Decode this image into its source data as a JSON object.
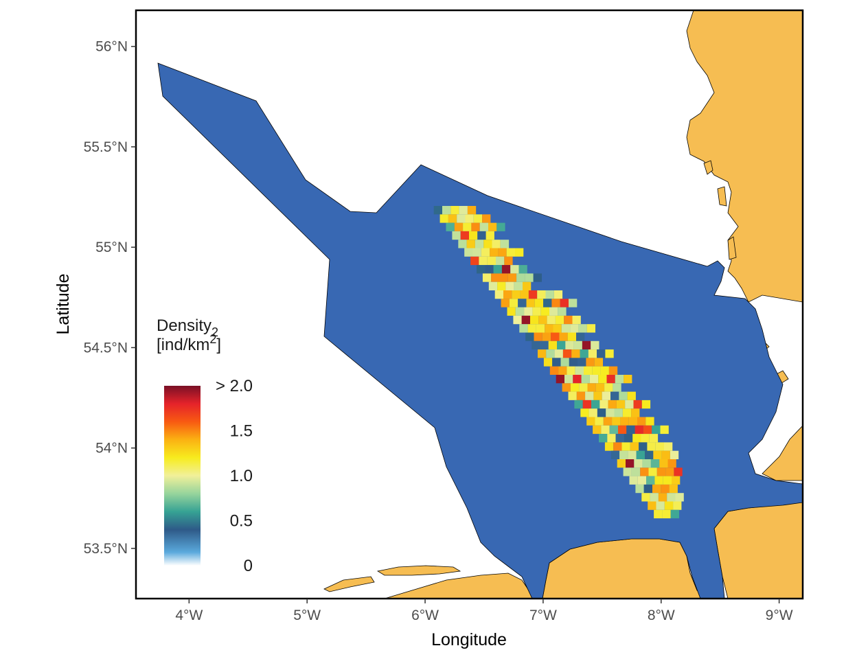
{
  "colors": {
    "sea_area": "#3868b3",
    "land": "#f6bd52",
    "background": "#ffffff",
    "frame": "#000000"
  },
  "axes": {
    "x_title": "Longitude",
    "y_title": "Latitude",
    "x_ticks": [
      {
        "value": 4,
        "label": "4°W"
      },
      {
        "value": 5,
        "label": "5°W"
      },
      {
        "value": 6,
        "label": "6°W"
      },
      {
        "value": 7,
        "label": "7°W"
      },
      {
        "value": 8,
        "label": "8°W"
      },
      {
        "value": 9,
        "label": "9°W"
      }
    ],
    "y_ticks": [
      {
        "value": 56.0,
        "label": "56°N"
      },
      {
        "value": 55.5,
        "label": "55.5°N"
      },
      {
        "value": 55.0,
        "label": "55°N"
      },
      {
        "value": 54.5,
        "label": "54.5°N"
      },
      {
        "value": 54.0,
        "label": "54°N"
      },
      {
        "value": 53.5,
        "label": "53.5°N"
      }
    ],
    "x_range": [
      3.55,
      9.2
    ],
    "y_range": [
      53.25,
      56.18
    ]
  },
  "legend": {
    "title_line1": "Density",
    "title_sub": "2",
    "title_line2": "[ind/km",
    "title_sup": "2",
    "title_end": "]",
    "placement": "bottom-left inside",
    "labels": [
      {
        "value": 2.0,
        "label": "> 2.0"
      },
      {
        "value": 1.5,
        "label": "1.5"
      },
      {
        "value": 1.0,
        "label": "1.0"
      },
      {
        "value": 0.5,
        "label": "0.5"
      },
      {
        "value": 0.0,
        "label": "0"
      }
    ],
    "gradient_stops": [
      {
        "value": 0.0,
        "color": "#ffffff"
      },
      {
        "value": 0.15,
        "color": "#5aa9dc"
      },
      {
        "value": 0.4,
        "color": "#2e5a88"
      },
      {
        "value": 0.6,
        "color": "#36a294"
      },
      {
        "value": 0.8,
        "color": "#96d49c"
      },
      {
        "value": 1.0,
        "color": "#f1f09a"
      },
      {
        "value": 1.2,
        "color": "#f7ec1e"
      },
      {
        "value": 1.4,
        "color": "#fbb212"
      },
      {
        "value": 1.6,
        "color": "#f85a12"
      },
      {
        "value": 1.8,
        "color": "#e5232a"
      },
      {
        "value": 2.0,
        "color": "#7a1026"
      }
    ]
  },
  "chart_data": {
    "type": "heatmap",
    "description_of_grid": "density cells along a diagonal survey transect band",
    "value_range": [
      0,
      2
    ]
  }
}
